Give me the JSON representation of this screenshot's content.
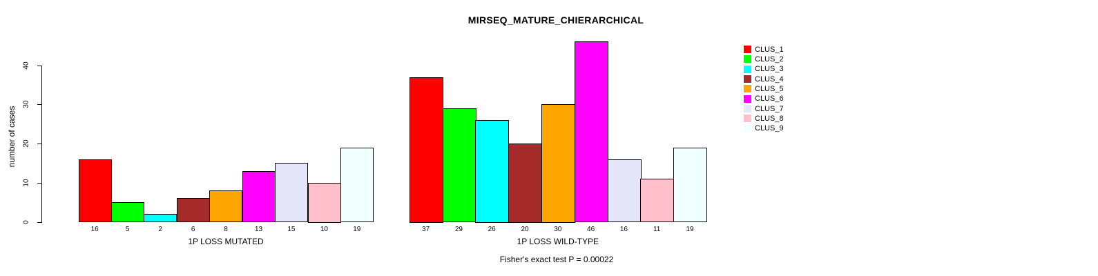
{
  "title": "MIRSEQ_MATURE_CHIERARCHICAL",
  "footnote": "Fisher's exact test P = 0.00022",
  "y_axis": {
    "label": "number of cases",
    "ticks": [
      0,
      10,
      20,
      30,
      40
    ]
  },
  "palette": [
    "#FF0000",
    "#00FF00",
    "#00FFFF",
    "#A52A2A",
    "#FFA500",
    "#FF00FF",
    "#E6E6FA",
    "#FFC0CB",
    "#F0FFFF"
  ],
  "legend": {
    "position": "right",
    "items": [
      {
        "label": "CLUS_1",
        "color": "#FF0000"
      },
      {
        "label": "CLUS_2",
        "color": "#00FF00"
      },
      {
        "label": "CLUS_3",
        "color": "#00FFFF"
      },
      {
        "label": "CLUS_4",
        "color": "#A52A2A"
      },
      {
        "label": "CLUS_5",
        "color": "#FFA500"
      },
      {
        "label": "CLUS_6",
        "color": "#FF00FF"
      },
      {
        "label": "CLUS_7",
        "color": "#E6E6FA"
      },
      {
        "label": "CLUS_8",
        "color": "#FFC0CB"
      },
      {
        "label": "CLUS_9",
        "color": "#F0FFFF"
      }
    ]
  },
  "chart_data": [
    {
      "type": "bar",
      "title": "",
      "xlabel": "1P LOSS MUTATED",
      "ylabel": "number of cases",
      "categories": [
        "16",
        "5",
        "2",
        "6",
        "8",
        "13",
        "15",
        "10",
        "19"
      ],
      "values": [
        16,
        5,
        2,
        6,
        8,
        13,
        15,
        10,
        19
      ],
      "series_labels": [
        "CLUS_1",
        "CLUS_2",
        "CLUS_3",
        "CLUS_4",
        "CLUS_5",
        "CLUS_6",
        "CLUS_7",
        "CLUS_8",
        "CLUS_9"
      ],
      "colors": [
        "#FF0000",
        "#00FF00",
        "#00FFFF",
        "#A52A2A",
        "#FFA500",
        "#FF00FF",
        "#E6E6FA",
        "#FFC0CB",
        "#F0FFFF"
      ],
      "ylim": [
        0,
        40
      ],
      "yticks": [
        0,
        10,
        20,
        30,
        40
      ],
      "y_axis_visible": true,
      "grid": false
    },
    {
      "type": "bar",
      "title": "",
      "xlabel": "1P LOSS WILD-TYPE",
      "ylabel": "number of cases",
      "categories": [
        "37",
        "29",
        "26",
        "20",
        "30",
        "46",
        "16",
        "11",
        "19"
      ],
      "values": [
        37,
        29,
        26,
        20,
        30,
        46,
        16,
        11,
        19
      ],
      "series_labels": [
        "CLUS_1",
        "CLUS_2",
        "CLUS_3",
        "CLUS_4",
        "CLUS_5",
        "CLUS_6",
        "CLUS_7",
        "CLUS_8",
        "CLUS_9"
      ],
      "colors": [
        "#FF0000",
        "#00FF00",
        "#00FFFF",
        "#A52A2A",
        "#FFA500",
        "#FF00FF",
        "#E6E6FA",
        "#FFC0CB",
        "#F0FFFF"
      ],
      "ylim": [
        0,
        40
      ],
      "yticks": [
        0,
        10,
        20,
        30,
        40
      ],
      "y_axis_visible": false,
      "grid": false
    }
  ]
}
